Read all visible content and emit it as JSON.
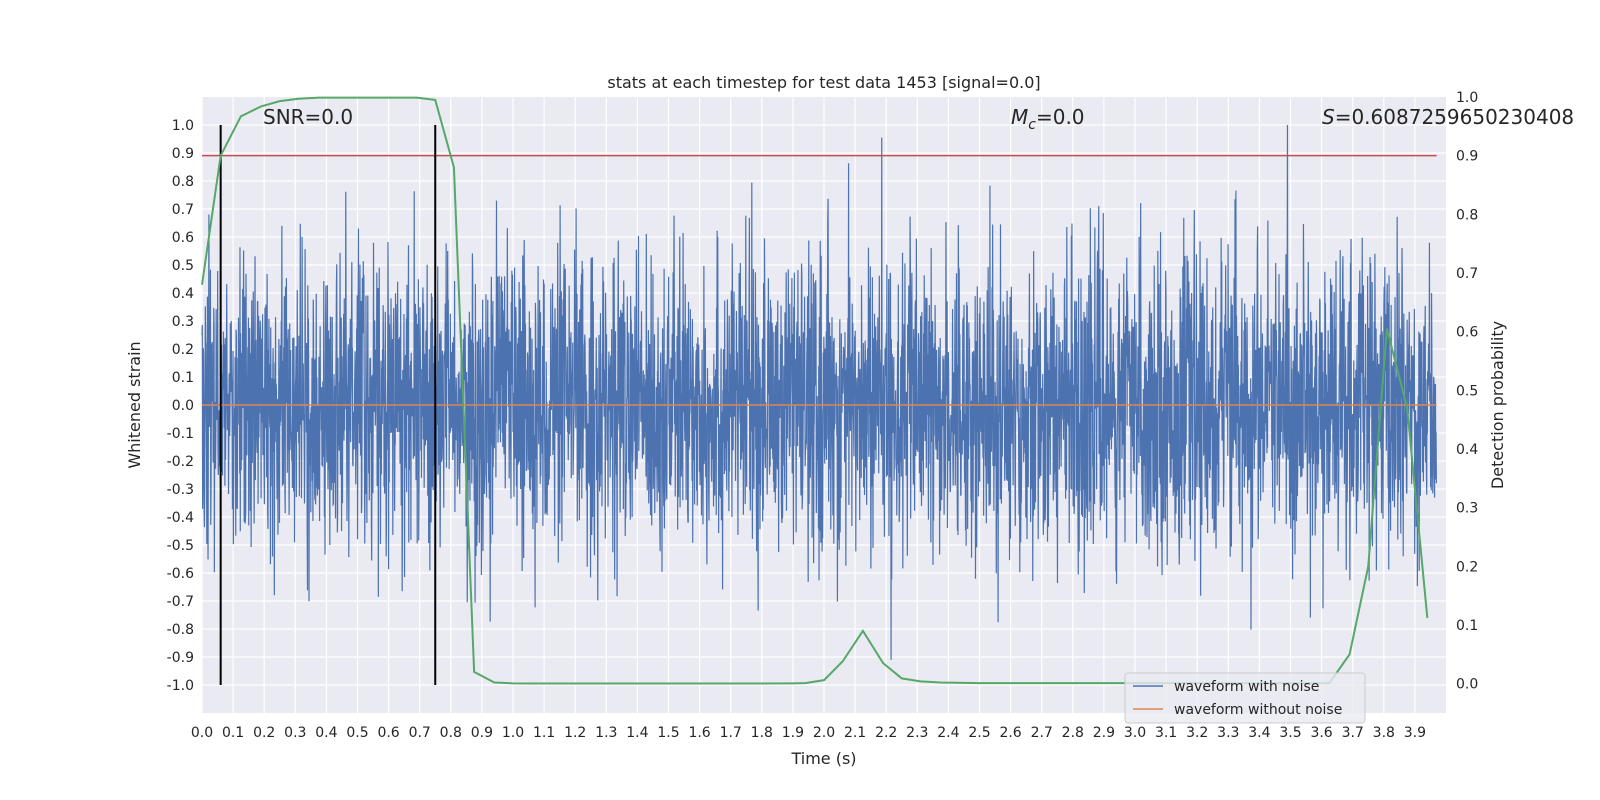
{
  "chart_data": {
    "type": "line",
    "title": "stats at each timestep for test data 1453 [signal=0.0]",
    "xlabel": "Time (s)",
    "ylabel_left": "Whitened strain",
    "ylabel_right": "Detection probability",
    "xlim": [
      0.0,
      4.0
    ],
    "ylim_left": [
      -1.1,
      1.1
    ],
    "ylim_right": [
      -0.05,
      1.0
    ],
    "x_ticks": [
      "0.0",
      "0.1",
      "0.2",
      "0.3",
      "0.4",
      "0.5",
      "0.6",
      "0.7",
      "0.8",
      "0.9",
      "1.0",
      "1.1",
      "1.2",
      "1.3",
      "1.4",
      "1.5",
      "1.6",
      "1.7",
      "1.8",
      "1.9",
      "2.0",
      "2.1",
      "2.2",
      "2.3",
      "2.4",
      "2.5",
      "2.6",
      "2.7",
      "2.8",
      "2.9",
      "3.0",
      "3.1",
      "3.2",
      "3.3",
      "3.4",
      "3.5",
      "3.6",
      "3.7",
      "3.8",
      "3.9"
    ],
    "y_left_ticks": [
      "1.0",
      "0.9",
      "0.8",
      "0.7",
      "0.6",
      "0.5",
      "0.4",
      "0.3",
      "0.2",
      "0.1",
      "0.0",
      "-0.1",
      "-0.2",
      "-0.3",
      "-0.4",
      "-0.5",
      "-0.6",
      "-0.7",
      "-0.8",
      "-0.9",
      "-1.0"
    ],
    "y_right_ticks": [
      "1.0",
      "0.9",
      "0.8",
      "0.7",
      "0.6",
      "0.5",
      "0.4",
      "0.3",
      "0.2",
      "0.1",
      "0.0"
    ],
    "grid": true,
    "background_color": "#eaeaf2",
    "annotations": [
      {
        "text": "SNR=0.0"
      },
      {
        "text_italic": "M",
        "text_sub": "c",
        "text_rest": "=0.0"
      },
      {
        "text_italic": "S",
        "text_rest": "=0.6087259650230408"
      }
    ],
    "series": [
      {
        "name": "waveform with noise",
        "color": "#4c72b0",
        "axis": "left",
        "description": "dense whitened noise, amplitude roughly between -0.9 and 1.0"
      },
      {
        "name": "waveform without noise",
        "color": "#dd8452",
        "axis": "left",
        "values_constant": 0.0
      },
      {
        "name": "detection probability",
        "color": "#55a868",
        "axis": "right",
        "x": [
          0.0,
          0.06,
          0.125,
          0.19,
          0.25,
          0.31,
          0.375,
          0.44,
          0.5,
          0.56,
          0.625,
          0.69,
          0.75,
          0.81,
          0.875,
          0.94,
          1.0,
          1.06,
          1.25,
          1.5,
          1.75,
          1.9,
          1.94,
          2.0,
          2.06,
          2.125,
          2.19,
          2.25,
          2.31,
          2.375,
          2.5,
          2.75,
          3.0,
          3.25,
          3.5,
          3.625,
          3.69,
          3.75,
          3.81,
          3.875,
          3.94
        ],
        "values": [
          0.68,
          0.9,
          0.967,
          0.984,
          0.993,
          0.997,
          0.999,
          0.999,
          0.999,
          0.999,
          0.999,
          0.999,
          0.995,
          0.88,
          0.02,
          0.002,
          0.0005,
          0.0003,
          0.0003,
          0.0003,
          0.0003,
          0.0005,
          0.001,
          0.006,
          0.038,
          0.09,
          0.035,
          0.009,
          0.004,
          0.002,
          0.001,
          0.001,
          0.001,
          0.001,
          0.001,
          0.001,
          0.05,
          0.2,
          0.605,
          0.47,
          0.112
        ]
      }
    ],
    "threshold": {
      "color": "#c44e52",
      "value_right": 0.9
    },
    "vertical_markers": {
      "color": "#000000",
      "x": [
        0.06,
        0.75
      ],
      "y_range_left": [
        -1.0,
        1.0
      ]
    },
    "legend": {
      "placement": "lower-right",
      "entries": [
        "waveform with noise",
        "waveform without noise"
      ]
    }
  }
}
